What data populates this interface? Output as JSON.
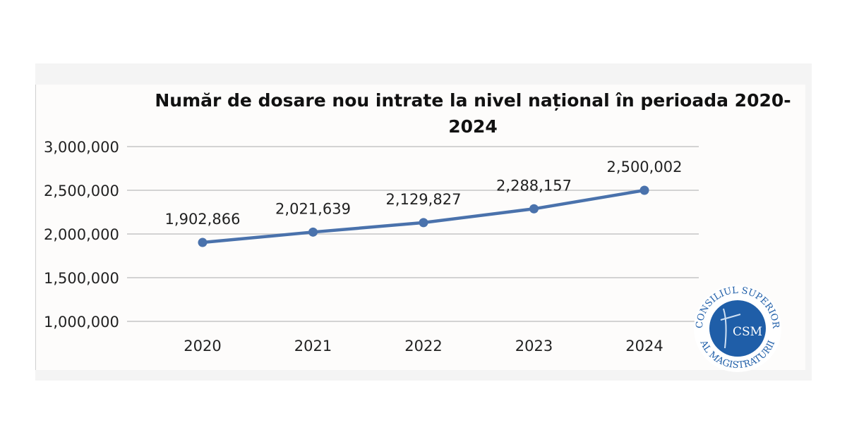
{
  "chart_data": {
    "type": "line",
    "title": "Număr de dosare nou intrate la nivel național în perioada 2020-2024",
    "title_lines": [
      "Număr de dosare nou intrate la nivel național în perioada 2020-",
      "2024"
    ],
    "categories": [
      "2020",
      "2021",
      "2022",
      "2023",
      "2024"
    ],
    "series": [
      {
        "name": "Dosare nou intrate",
        "values": [
          1902866,
          2021639,
          2129827,
          2288157,
          2500002
        ],
        "color": "#4a72ac"
      }
    ],
    "data_labels": [
      "1,902,866",
      "2,021,639",
      "2,129,827",
      "2,288,157",
      "2,500,002"
    ],
    "yticks": [
      1000000,
      1500000,
      2000000,
      2500000,
      3000000
    ],
    "ytick_labels": [
      "1,000,000",
      "1,500,000",
      "2,000,000",
      "2,500,000",
      "3,000,000"
    ],
    "ylim": [
      1000000,
      3000000
    ],
    "grid": true,
    "xlabel": "",
    "ylabel": ""
  },
  "logo": {
    "text_top": "CONSILIUL SUPERIOR",
    "text_bottom": "AL MAGISTRATURII",
    "abbr": "CSM",
    "color": "#1f5ea8"
  }
}
